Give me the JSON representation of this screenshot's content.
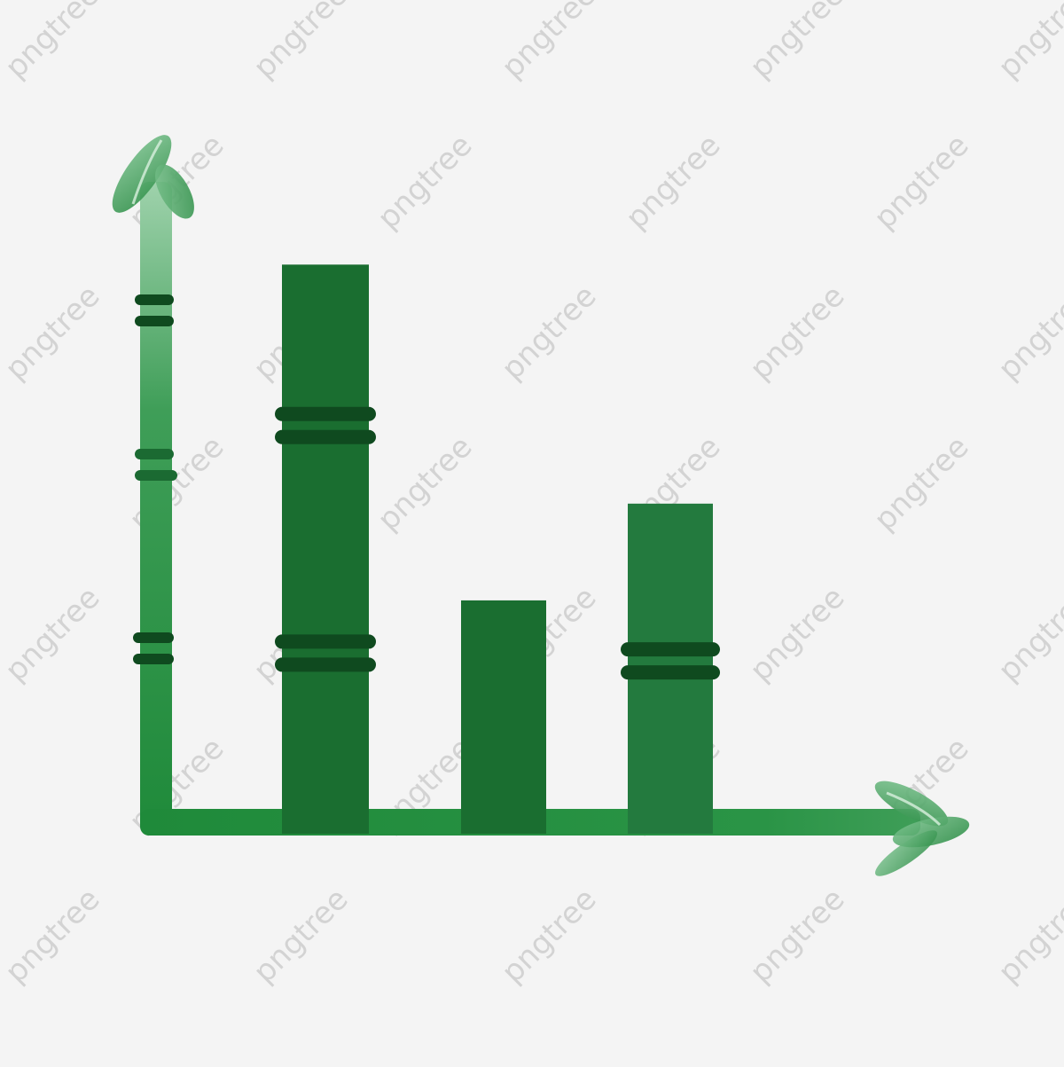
{
  "watermark": "pngtree",
  "colors": {
    "background": "#f4f4f4",
    "axis_green": "#1f8a3a",
    "axis_green_light": "#4aa862",
    "bar_green": "#1a6e30",
    "bar_green_alt": "#237a3e",
    "node_dark": "#0f4a1f"
  },
  "icons": {
    "y_axis_tip": "bamboo-leaf-icon",
    "x_axis_tip": "bamboo-leaf-icon"
  },
  "chart_data": {
    "type": "bar",
    "categories": [
      "",
      "",
      ""
    ],
    "values": [
      100,
      41,
      58
    ],
    "ylim": [
      0,
      120
    ],
    "grid": false,
    "legend": "none",
    "title": "",
    "xlabel": "",
    "ylabel": ""
  }
}
